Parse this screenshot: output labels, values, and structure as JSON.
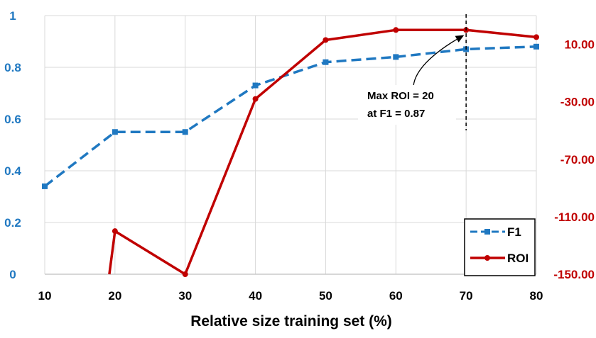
{
  "chart_data": {
    "type": "line",
    "x": [
      10,
      20,
      30,
      40,
      50,
      60,
      70,
      80
    ],
    "xlabel": "Relative size training set (%)",
    "x_ticks": [
      "10",
      "20",
      "30",
      "40",
      "50",
      "60",
      "70",
      "80"
    ],
    "xlim": [
      10,
      80
    ],
    "left_axis": {
      "ylim": [
        0,
        1
      ],
      "ticks": [
        "0",
        "0.2",
        "0.4",
        "0.6",
        "0.8",
        "1"
      ],
      "color": "#1f78c1"
    },
    "right_axis": {
      "ylim": [
        -150,
        30
      ],
      "ticks": [
        "10.00",
        "-30.00",
        "-70.00",
        "-110.00",
        "-150.00"
      ],
      "color": "#c00000"
    },
    "series": [
      {
        "name": "F1",
        "axis": "left",
        "color": "#1f78c1",
        "style": "dashed",
        "marker": "square",
        "x": [
          10,
          20,
          30,
          40,
          50,
          60,
          70,
          80
        ],
        "values": [
          0.34,
          0.55,
          0.55,
          0.73,
          0.82,
          0.84,
          0.87,
          0.88
        ]
      },
      {
        "name": "ROI",
        "axis": "right",
        "color": "#c00000",
        "style": "solid",
        "marker": "circle",
        "x": [
          19.2,
          20,
          30,
          40,
          50,
          60,
          70,
          80
        ],
        "values": [
          -150,
          -120,
          -150,
          -28,
          13,
          20,
          20,
          15
        ]
      }
    ],
    "annotations": {
      "vline_x": 70,
      "text_line1": "Max ROI = 20",
      "text_line2": "at F1 = 0.87"
    },
    "legend": {
      "position": "bottom-right",
      "entries": [
        "F1",
        "ROI"
      ]
    }
  }
}
